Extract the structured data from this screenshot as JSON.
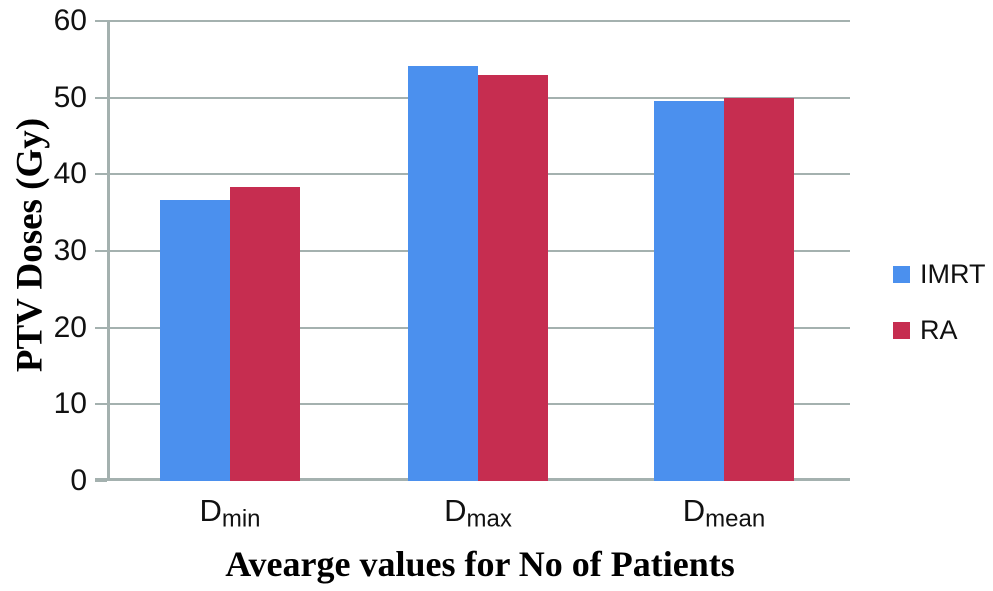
{
  "chart_data": {
    "type": "bar",
    "title": "",
    "xlabel": "Avearge values for No of Patients",
    "ylabel": "PTV Doses (Gy)",
    "categories": [
      {
        "full": "Dmin",
        "base": "D",
        "sub": "min"
      },
      {
        "full": "Dmax",
        "base": "D",
        "sub": "max"
      },
      {
        "full": "Dmean",
        "base": "D",
        "sub": "mean"
      }
    ],
    "series": [
      {
        "name": "IMRT",
        "color": "#4b90ee",
        "values": [
          36.7,
          54.1,
          49.6
        ]
      },
      {
        "name": "RA",
        "color": "#c62d50",
        "values": [
          38.3,
          53.0,
          49.9
        ]
      }
    ],
    "yaxis": {
      "min": 0,
      "max": 60,
      "ticks": [
        0,
        10,
        20,
        30,
        40,
        50,
        60
      ]
    },
    "grid": true,
    "legend_position": "right",
    "colors": {
      "gridline": "#a4b1af",
      "text": "#111111"
    }
  }
}
